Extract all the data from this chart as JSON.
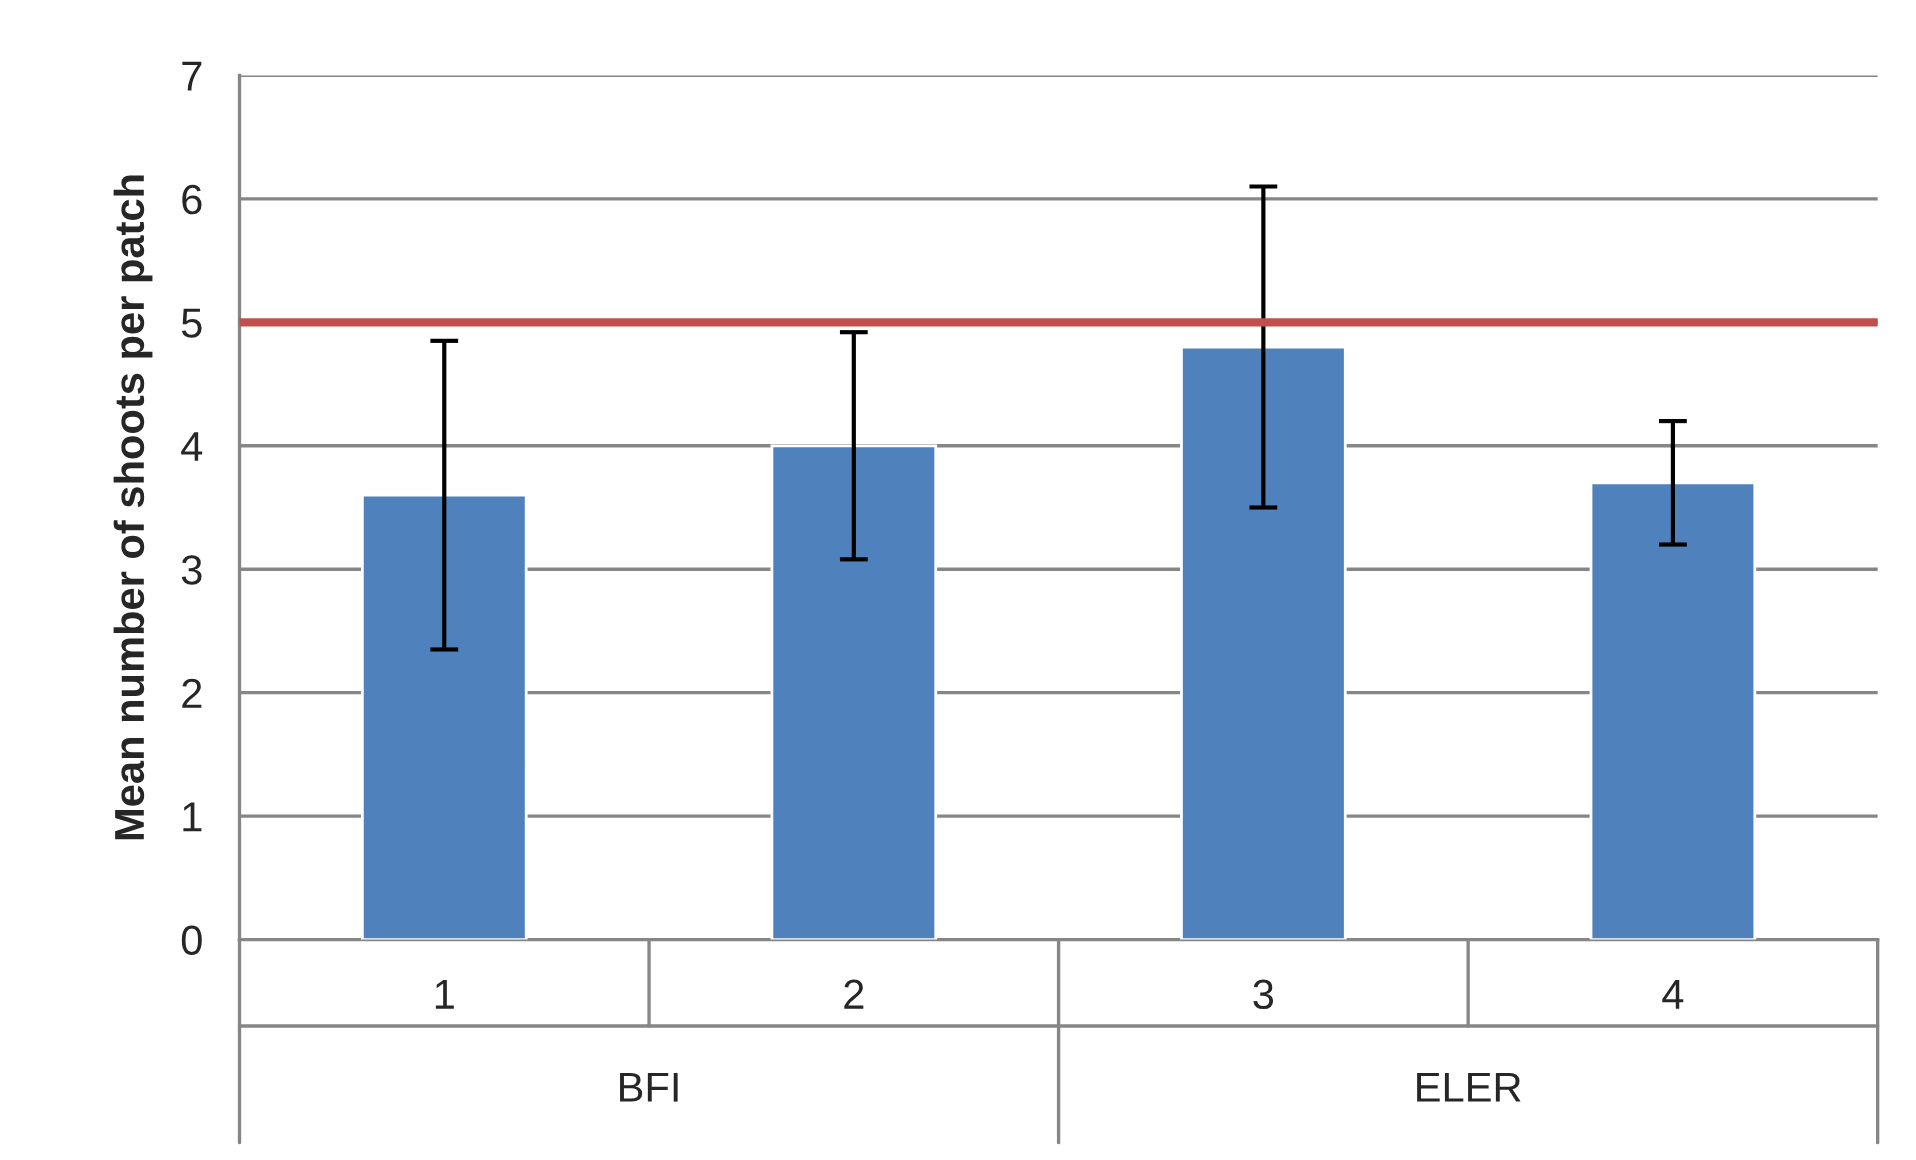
{
  "chart_data": {
    "type": "bar",
    "ylabel": "Mean number of shoots per patch",
    "categories": [
      "1",
      "2",
      "3",
      "4"
    ],
    "values": [
      3.6,
      4.0,
      4.8,
      3.7
    ],
    "color": "#4f81bd",
    "errors": [
      1.25,
      0.92,
      1.3,
      0.5
    ],
    "ylim": [
      0,
      7
    ],
    "yticks": [
      0,
      1,
      2,
      3,
      4,
      5,
      6,
      7
    ],
    "grid": "y",
    "ref_lines": [
      {
        "axis": "y",
        "value": 5,
        "color": "#c0504d"
      }
    ],
    "annotations": [
      "BFI",
      "ELER"
    ]
  }
}
